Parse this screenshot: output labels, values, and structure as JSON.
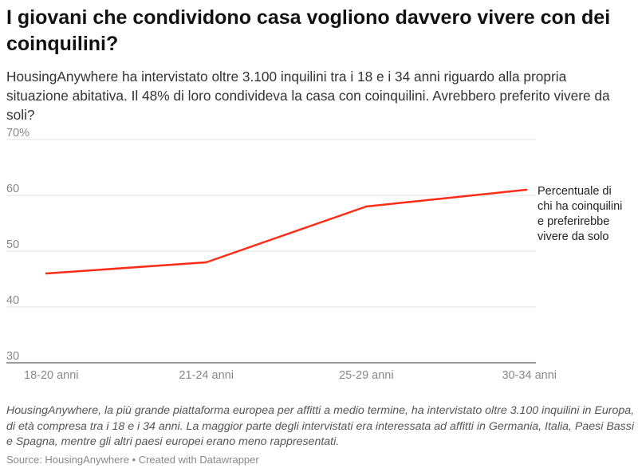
{
  "title": "I giovani che condividono casa vogliono davvero vivere con dei coinquilini?",
  "subtitle": "HousingAnywhere ha intervistato oltre 3.100 inquilini tra i 18 e i 34 anni riguardo alla propria situazione abitativa. Il 48% di loro condivideva la casa con coinquilini. Avrebbero preferito vivere da soli?",
  "notes": "HousingAnywhere, la più grande piattaforma europea per affitti a medio termine, ha intervistato oltre 3.100 inquilini in Europa, di età compresa tra i 18 e i 34 anni. La maggior parte degli intervistati era interessata ad affitti in Germania, Italia, Paesi Bassi e Spagna, mentre gli altri paesi europei erano meno rappresentati.",
  "footer": {
    "source_label": "Source: HousingAnywhere",
    "separator": " • ",
    "created_with": "Created with Datawrapper"
  },
  "chart_data": {
    "type": "line",
    "categories": [
      "18-20 anni",
      "21-24 anni",
      "25-29 anni",
      "30-34 anni"
    ],
    "series": [
      {
        "name": "Percentuale di chi ha coinquilini e preferirebbe vivere da solo",
        "label_lines": [
          "Percentuale di",
          "chi ha coinquilini",
          "e preferirebbe",
          "vivere da solo"
        ],
        "values": [
          46,
          48,
          58,
          61
        ],
        "color": "#ff2d16"
      }
    ],
    "ylim": [
      30,
      70
    ],
    "yticks": [
      30,
      40,
      50,
      60,
      70
    ],
    "ytick_labels": [
      "30",
      "40",
      "50",
      "60",
      "70%"
    ],
    "grid": true,
    "xlabel": "",
    "ylabel": ""
  }
}
